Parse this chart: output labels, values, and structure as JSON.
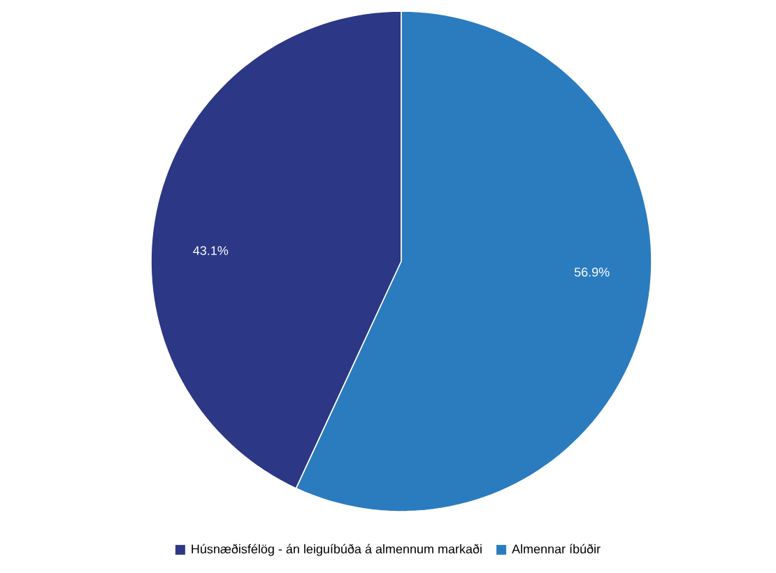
{
  "chart_data": {
    "type": "pie",
    "categories": [
      "Húsnæðisfélög - án leiguíbúða á almennum markaði",
      "Almennar íbúðir"
    ],
    "values": [
      43.1,
      56.9
    ],
    "colors": [
      "#2c3785",
      "#2b7bbf"
    ],
    "value_labels": [
      "43.1%",
      "56.9%"
    ],
    "legend": "bottom"
  }
}
